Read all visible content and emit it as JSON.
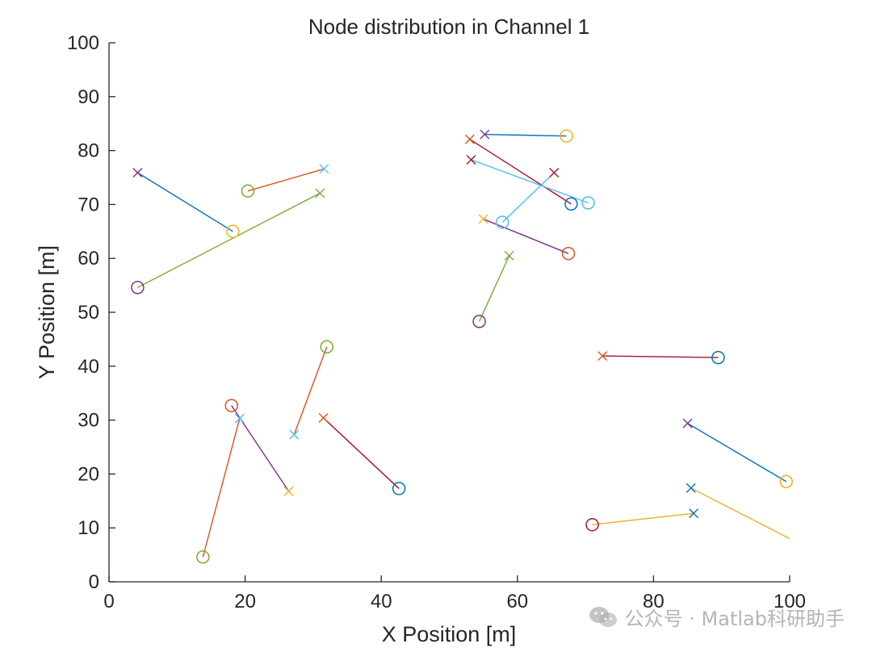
{
  "chart_data": {
    "type": "scatter",
    "title": "Node distribution in Channel 1",
    "xlabel": "X Position [m]",
    "ylabel": "Y Position [m]",
    "xlim": [
      0,
      100
    ],
    "ylim": [
      0,
      100
    ],
    "xticks": [
      0,
      20,
      40,
      60,
      80,
      100
    ],
    "yticks": [
      0,
      10,
      20,
      30,
      40,
      50,
      60,
      70,
      80,
      90,
      100
    ],
    "grid": false,
    "links": [
      {
        "from": [
          4.2,
          75.9
        ],
        "to": [
          18.2,
          65.0
        ],
        "from_color": "#7E2F8E",
        "to_color": "#EDB120",
        "line_color": "#0072BD"
      },
      {
        "from": [
          31.6,
          76.6
        ],
        "to": [
          20.4,
          72.5
        ],
        "from_color": "#4DBEEE",
        "to_color": "#77AC30",
        "line_color": "#D95319"
      },
      {
        "from": [
          31.0,
          72.1
        ],
        "to": [
          4.2,
          54.6
        ],
        "from_color": "#77AC30",
        "to_color": "#7E2F8E",
        "line_color": "#77AC30"
      },
      {
        "from": [
          55.2,
          83.0
        ],
        "to": [
          67.2,
          82.7
        ],
        "from_color": "#7E2F8E",
        "to_color": "#EDB120",
        "line_color": "#0072BD"
      },
      {
        "from": [
          53.0,
          82.1
        ],
        "to": [
          67.9,
          70.1
        ],
        "from_color": "#D95319",
        "to_color": "#0072BD",
        "line_color": "#A2142F"
      },
      {
        "from": [
          53.2,
          78.3
        ],
        "to": [
          70.4,
          70.3
        ],
        "from_color": "#A2142F",
        "to_color": "#4DBEEE",
        "line_color": "#4DBEEE"
      },
      {
        "from": [
          65.4,
          75.9
        ],
        "to": [
          57.8,
          66.7
        ],
        "from_color": "#A2142F",
        "to_color": "#4DBEEE",
        "line_color": "#4DBEEE"
      },
      {
        "from": [
          55.0,
          67.3
        ],
        "to": [
          67.5,
          60.9
        ],
        "from_color": "#EDB120",
        "to_color": "#D95319",
        "line_color": "#7E2F8E"
      },
      {
        "from": [
          58.8,
          60.5
        ],
        "to": [
          54.4,
          48.3
        ],
        "from_color": "#77AC30",
        "to_color": "#7E2F8E",
        "line_color": "#77AC30"
      },
      {
        "from": [
          72.5,
          41.9
        ],
        "to": [
          89.5,
          41.6
        ],
        "from_color": "#D95319",
        "to_color": "#0072BD",
        "line_color": "#A2142F"
      },
      {
        "from": [
          85.0,
          29.4
        ],
        "to": [
          99.5,
          18.6
        ],
        "from_color": "#7E2F8E",
        "to_color": "#EDB120",
        "line_color": "#0072BD"
      },
      {
        "from": [
          85.5,
          17.4
        ],
        "to": [
          100.0,
          8.0
        ],
        "from_color": "#0072BD",
        "to_color": null,
        "line_color": "#EDB120"
      },
      {
        "from": [
          85.9,
          12.7
        ],
        "to": [
          71.0,
          10.6
        ],
        "from_color": "#0072BD",
        "to_color": "#A2142F",
        "line_color": "#EDB120"
      },
      {
        "from": [
          27.2,
          27.3
        ],
        "to": [
          32.0,
          43.6
        ],
        "from_color": "#4DBEEE",
        "to_color": "#77AC30",
        "line_color": "#D95319"
      },
      {
        "from": [
          31.5,
          30.4
        ],
        "to": [
          42.6,
          17.3
        ],
        "from_color": "#D95319",
        "to_color": "#0072BD",
        "line_color": "#A2142F"
      },
      {
        "from": [
          19.2,
          30.3
        ],
        "to": [
          13.8,
          4.6
        ],
        "from_color": "#4DBEEE",
        "to_color": "#77AC30",
        "line_color": "#D95319"
      },
      {
        "from": [
          26.4,
          16.8
        ],
        "to": [
          18.0,
          32.7
        ],
        "from_color": "#EDB120",
        "to_color": "#D95319",
        "line_color": "#7E2F8E"
      }
    ]
  },
  "watermark": {
    "text": "公众号 · Matlab科研助手",
    "icon": "wechat-icon"
  }
}
